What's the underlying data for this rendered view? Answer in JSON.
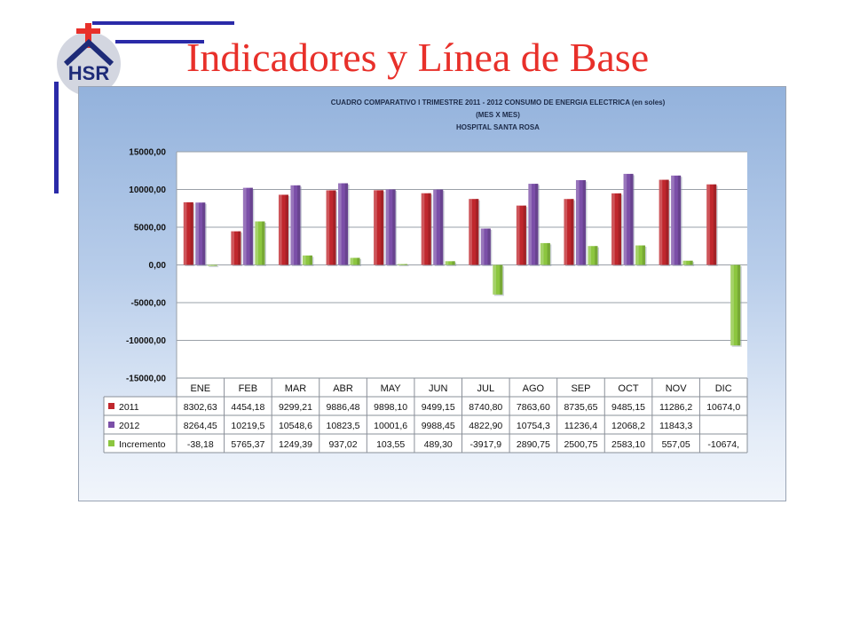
{
  "slide": {
    "title": "Indicadores y Línea de Base",
    "logo_text": "HSR",
    "accent_color": "#e8302a",
    "deco_color": "#2a2aa8"
  },
  "chart_data": {
    "type": "bar",
    "title_lines": [
      "CUADRO COMPARATIVO I TRIMESTRE 2011 - 2012    CONSUMO  DE ENERGIA ELECTRICA  (en soles)",
      "(MES X MES)",
      "HOSPITAL SANTA ROSA"
    ],
    "categories": [
      "ENE",
      "FEB",
      "MAR",
      "ABR",
      "MAY",
      "JUN",
      "JUL",
      "AGO",
      "SEP",
      "OCT",
      "NOV",
      "DIC"
    ],
    "series": [
      {
        "name": "2011",
        "color": "#c0272d",
        "values": [
          8302.63,
          4454.18,
          9299.21,
          9886.48,
          9898.1,
          9499.15,
          8740.8,
          7863.6,
          8735.65,
          9485.15,
          11286.2,
          10674.0
        ],
        "table_labels": [
          "8302,63",
          "4454,18",
          "9299,21",
          "9886,48",
          "9898,10",
          "9499,15",
          "8740,80",
          "7863,60",
          "8735,65",
          "9485,15",
          "11286,2",
          "10674,0"
        ]
      },
      {
        "name": "2012",
        "color": "#7b4fa8",
        "values": [
          8264.45,
          10219.5,
          10548.6,
          10823.5,
          10001.6,
          9988.45,
          4822.9,
          10754.3,
          11236.4,
          12068.2,
          11843.3,
          null
        ],
        "table_labels": [
          "8264,45",
          "10219,5",
          "10548,6",
          "10823,5",
          "10001,6",
          "9988,45",
          "4822,90",
          "10754,3",
          "11236,4",
          "12068,2",
          "11843,3",
          ""
        ]
      },
      {
        "name": "Incremento",
        "color": "#8cc63f",
        "values": [
          -38.18,
          5765.37,
          1249.39,
          937.02,
          103.55,
          489.3,
          -3917.9,
          2890.75,
          2500.75,
          2583.1,
          557.05,
          -10674
        ],
        "table_labels": [
          "-38,18",
          "5765,37",
          "1249,39",
          "937,02",
          "103,55",
          "489,30",
          "-3917,9",
          "2890,75",
          "2500,75",
          "2583,10",
          "557,05",
          "-10674,"
        ]
      }
    ],
    "y_ticks": [
      "15000,00",
      "10000,00",
      "5000,00",
      "0,00",
      "-5000,00",
      "-10000,00",
      "-15000,00"
    ],
    "ylim": [
      -15000,
      15000
    ],
    "grid": true,
    "legend": "data-table"
  }
}
